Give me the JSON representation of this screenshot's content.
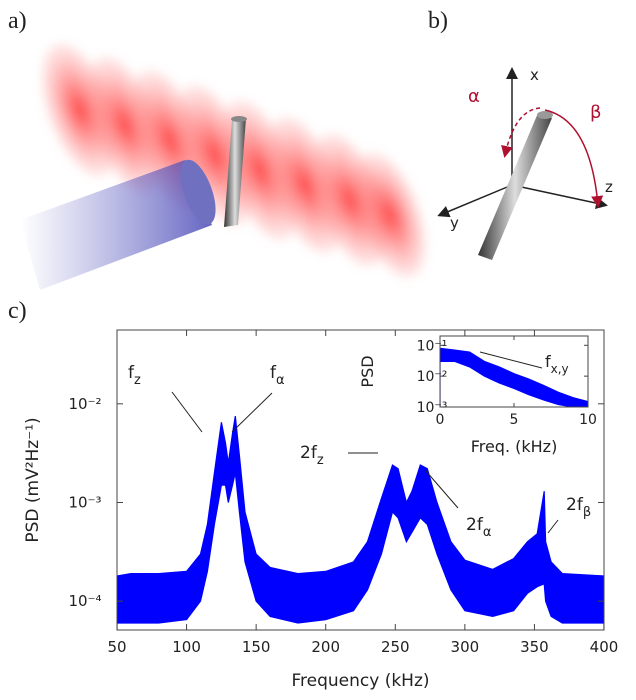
{
  "panels": {
    "a": "a)",
    "b": "b)",
    "c": "c)"
  },
  "diagram_b": {
    "axes": [
      "x",
      "y",
      "z"
    ],
    "angles": [
      "α",
      "β"
    ]
  },
  "chart_data": [
    {
      "type": "area",
      "x_label": "Frequency (kHz)",
      "y_label": "PSD (mV²Hz⁻¹)",
      "log_y": true,
      "color": "#0000ff",
      "x": [
        50,
        60,
        80,
        100,
        110,
        115,
        120,
        125,
        128,
        130,
        133,
        135,
        138,
        142,
        150,
        160,
        180,
        200,
        220,
        230,
        240,
        248,
        252,
        258,
        262,
        268,
        273,
        280,
        290,
        300,
        320,
        335,
        345,
        352,
        357,
        358,
        362,
        370,
        400
      ],
      "series": [
        {
          "values": [
            0.00018,
            0.00019,
            0.00019,
            0.0002,
            0.0003,
            0.0006,
            0.002,
            0.0065,
            0.004,
            0.0025,
            0.005,
            0.0075,
            0.003,
            0.0008,
            0.0003,
            0.00022,
            0.00019,
            0.0002,
            0.00025,
            0.0004,
            0.0011,
            0.0024,
            0.0022,
            0.001,
            0.0013,
            0.0024,
            0.0022,
            0.001,
            0.0004,
            0.00026,
            0.00021,
            0.00027,
            0.0004,
            0.00048,
            0.0013,
            0.0004,
            0.00025,
            0.00019,
            0.00018
          ]
        },
        {
          "values": [
            6e-05,
            6e-05,
            6e-05,
            6.5e-05,
            0.0001,
            0.0002,
            0.0006,
            0.0015,
            0.0015,
            0.001,
            0.0015,
            0.002,
            0.0008,
            0.00025,
            0.0001,
            7e-05,
            6e-05,
            6.5e-05,
            8e-05,
            0.00013,
            0.0003,
            0.0008,
            0.0007,
            0.0004,
            0.0005,
            0.0007,
            0.0006,
            0.0003,
            0.00013,
            8e-05,
            7e-05,
            8e-05,
            0.00012,
            0.00014,
            0.00015,
            0.0001,
            7e-05,
            6e-05,
            6e-05
          ]
        }
      ],
      "xlim": [
        50,
        400
      ],
      "xticks": [
        50,
        100,
        150,
        200,
        250,
        300,
        350,
        400
      ],
      "ylim": [
        5.1e-05,
        0.056
      ],
      "yticks": [
        {
          "value": 0.0001,
          "label": "10⁻⁴"
        },
        {
          "value": 0.001,
          "label": "10⁻³"
        },
        {
          "value": 0.01,
          "label": "10⁻²"
        }
      ],
      "annotations": [
        {
          "text": "f",
          "sub": "z"
        },
        {
          "text": "f",
          "sub": "α"
        },
        {
          "text": "2f",
          "sub": "z"
        },
        {
          "text": "2f",
          "sub": "α"
        },
        {
          "text": "2f",
          "sub": "β"
        }
      ]
    },
    {
      "type": "area",
      "x_label": "Freq. (kHz)",
      "y_label": "PSD",
      "log_y": true,
      "color": "#0000ff",
      "x": [
        0,
        1,
        2,
        3,
        4,
        5,
        6,
        7,
        8,
        9,
        10
      ],
      "series": [
        {
          "values": [
            0.08,
            0.07,
            0.06,
            0.03,
            0.02,
            0.012,
            0.008,
            0.005,
            0.003,
            0.002,
            0.0015
          ]
        },
        {
          "values": [
            0.03,
            0.03,
            0.02,
            0.01,
            0.006,
            0.004,
            0.0025,
            0.0017,
            0.0012,
            0.001,
            0.001
          ]
        }
      ],
      "xlim": [
        0,
        10
      ],
      "xticks": [
        0,
        5,
        10
      ],
      "ylim": [
        0.001,
        0.2
      ],
      "yticks": [
        {
          "value": 0.001,
          "label": "10⁻³"
        },
        {
          "value": 0.01,
          "label": "10⁻²"
        },
        {
          "value": 0.1,
          "label": "10⁻¹"
        }
      ],
      "annotations": [
        {
          "text": "f",
          "sub": "x,y"
        }
      ]
    }
  ]
}
